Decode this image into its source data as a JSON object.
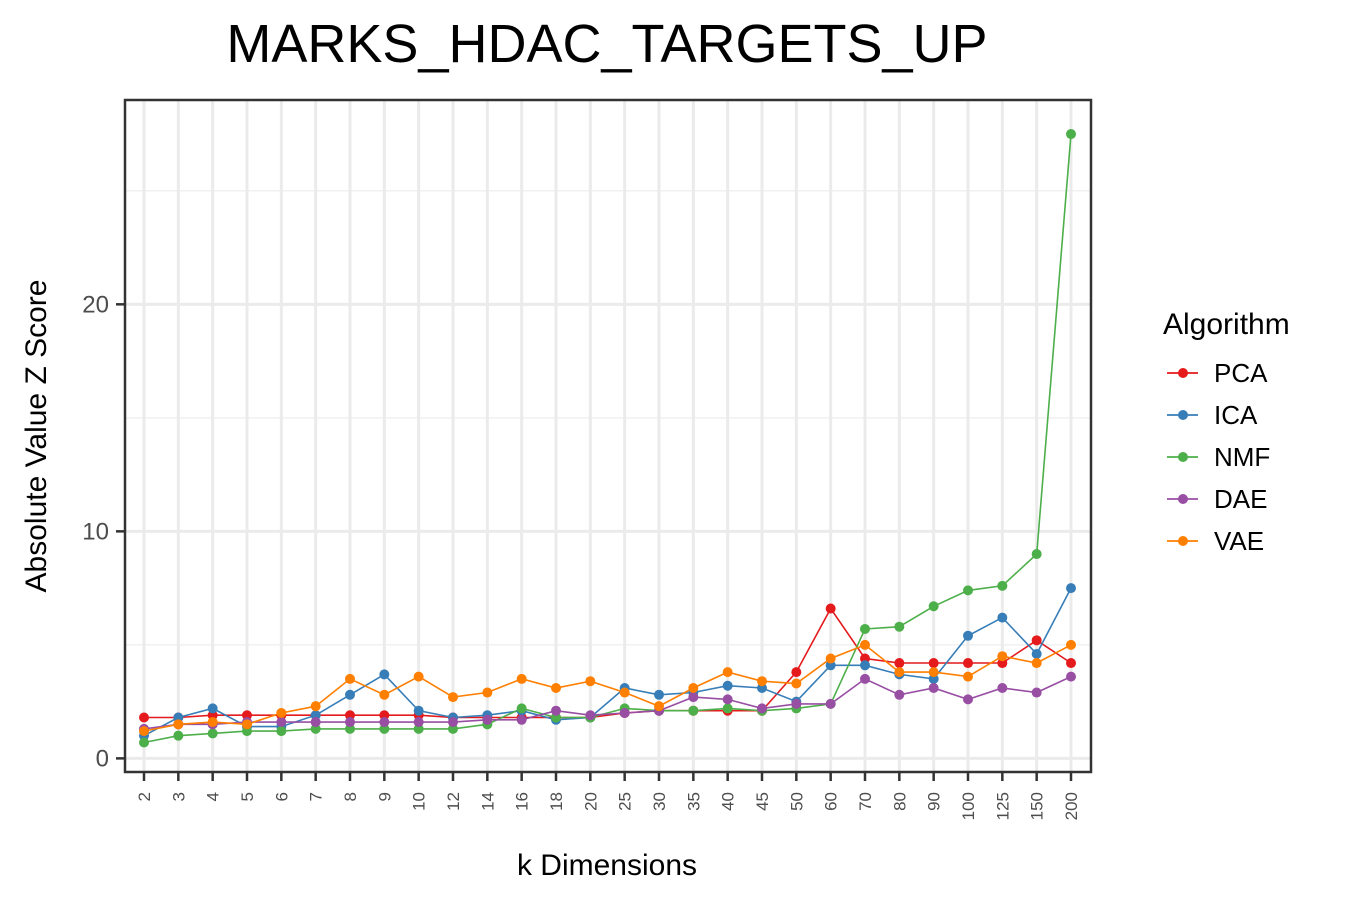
{
  "chart_data": {
    "type": "line",
    "title": "MARKS_HDAC_TARGETS_UP",
    "xlabel": "k Dimensions",
    "ylabel": "Absolute Value Z Score",
    "categories": [
      "2",
      "3",
      "4",
      "5",
      "6",
      "7",
      "8",
      "9",
      "10",
      "12",
      "14",
      "16",
      "18",
      "20",
      "25",
      "30",
      "35",
      "40",
      "45",
      "50",
      "60",
      "70",
      "80",
      "90",
      "100",
      "125",
      "150",
      "200"
    ],
    "ylim": [
      -0.6,
      29
    ],
    "yticks": [
      0,
      10,
      20
    ],
    "grid": true,
    "legend": {
      "title": "Algorithm",
      "placement": "right"
    },
    "series": [
      {
        "name": "PCA",
        "color": "#e41a1c",
        "values": [
          1.8,
          1.8,
          1.9,
          1.9,
          1.9,
          1.9,
          1.9,
          1.9,
          1.9,
          1.8,
          1.8,
          1.8,
          1.8,
          1.8,
          2.0,
          2.1,
          2.1,
          2.1,
          2.1,
          3.8,
          6.6,
          4.4,
          4.2,
          4.2,
          4.2,
          4.2,
          5.2,
          4.2
        ]
      },
      {
        "name": "ICA",
        "color": "#377eb8",
        "values": [
          1.0,
          1.8,
          2.2,
          1.4,
          1.4,
          1.9,
          2.8,
          3.7,
          2.1,
          1.8,
          1.9,
          2.1,
          1.7,
          1.8,
          3.1,
          2.8,
          2.9,
          3.2,
          3.1,
          2.5,
          4.1,
          4.1,
          3.7,
          3.5,
          5.4,
          6.2,
          4.6,
          7.5
        ]
      },
      {
        "name": "NMF",
        "color": "#4daf4a",
        "values": [
          0.7,
          1.0,
          1.1,
          1.2,
          1.2,
          1.3,
          1.3,
          1.3,
          1.3,
          1.3,
          1.5,
          2.2,
          1.8,
          1.8,
          2.2,
          2.1,
          2.1,
          2.2,
          2.1,
          2.2,
          2.4,
          5.7,
          5.8,
          6.7,
          7.4,
          7.6,
          9.0,
          27.5
        ]
      },
      {
        "name": "DAE",
        "color": "#984ea3",
        "values": [
          1.3,
          1.5,
          1.5,
          1.6,
          1.6,
          1.6,
          1.6,
          1.6,
          1.6,
          1.6,
          1.7,
          1.7,
          2.1,
          1.9,
          2.0,
          2.1,
          2.7,
          2.6,
          2.2,
          2.4,
          2.4,
          3.5,
          2.8,
          3.1,
          2.6,
          3.1,
          2.9,
          3.6
        ]
      },
      {
        "name": "VAE",
        "color": "#ff7f00",
        "values": [
          1.2,
          1.5,
          1.6,
          1.5,
          2.0,
          2.3,
          3.5,
          2.8,
          3.6,
          2.7,
          2.9,
          3.5,
          3.1,
          3.4,
          2.9,
          2.3,
          3.1,
          3.8,
          3.4,
          3.3,
          4.4,
          5.0,
          3.8,
          3.8,
          3.6,
          4.5,
          4.2,
          5.0
        ]
      }
    ]
  }
}
